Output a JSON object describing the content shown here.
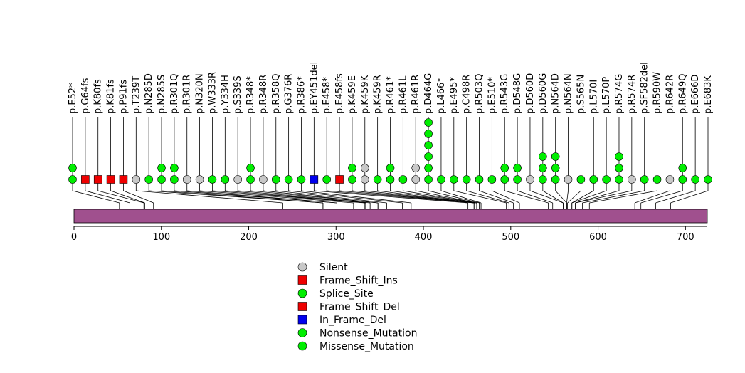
{
  "chart_data": {
    "type": "lollipop",
    "title": "",
    "protein": {
      "start": 0,
      "end": 725,
      "domain_color": "#A0508E"
    },
    "axis": {
      "min": 0,
      "max": 725,
      "ticks": [
        0,
        100,
        200,
        300,
        400,
        500,
        600,
        700
      ]
    },
    "mutation_types": {
      "Silent": {
        "shape": "circle",
        "color": "#C8C8C8"
      },
      "Frame_Shift_Ins": {
        "shape": "square",
        "color": "#EE0000"
      },
      "Splice_Site": {
        "shape": "circle",
        "color": "#00EE00"
      },
      "Frame_Shift_Del": {
        "shape": "square",
        "color": "#EE0000"
      },
      "In_Frame_Del": {
        "shape": "square",
        "color": "#0000EE"
      },
      "Nonsense_Mutation": {
        "shape": "circle",
        "color": "#00EE00"
      },
      "Missense_Mutation": {
        "shape": "circle",
        "color": "#00EE00"
      }
    },
    "legend": [
      "Silent",
      "Frame_Shift_Ins",
      "Splice_Site",
      "Frame_Shift_Del",
      "In_Frame_Del",
      "Nonsense_Mutation",
      "Missense_Mutation"
    ],
    "mutations": [
      {
        "label": "p.E52*",
        "pos": 52,
        "markers": [
          "#00EE00",
          "#00EE00"
        ],
        "shape": "circle"
      },
      {
        "label": "p.G64fs",
        "pos": 64,
        "markers": [
          "#EE0000"
        ],
        "shape": "square"
      },
      {
        "label": "p.K80fs",
        "pos": 80,
        "markers": [
          "#EE0000"
        ],
        "shape": "square"
      },
      {
        "label": "p.K81fs",
        "pos": 81,
        "markers": [
          "#EE0000"
        ],
        "shape": "square"
      },
      {
        "label": "p.P91fs",
        "pos": 91,
        "markers": [
          "#EE0000"
        ],
        "shape": "square"
      },
      {
        "label": "p.T239T",
        "pos": 239,
        "markers": [
          "#C8C8C8"
        ],
        "shape": "circle"
      },
      {
        "label": "p.N285D",
        "pos": 285,
        "markers": [
          "#00EE00"
        ],
        "shape": "circle"
      },
      {
        "label": "p.N285S",
        "pos": 285,
        "markers": [
          "#00EE00",
          "#00EE00"
        ],
        "shape": "circle"
      },
      {
        "label": "p.R301Q",
        "pos": 301,
        "markers": [
          "#00EE00",
          "#00EE00"
        ],
        "shape": "circle"
      },
      {
        "label": "p.R301R",
        "pos": 301,
        "markers": [
          "#C8C8C8"
        ],
        "shape": "circle"
      },
      {
        "label": "p.N320N",
        "pos": 320,
        "markers": [
          "#C8C8C8"
        ],
        "shape": "circle"
      },
      {
        "label": "p.W333R",
        "pos": 333,
        "markers": [
          "#00EE00"
        ],
        "shape": "circle"
      },
      {
        "label": "p.Y334H",
        "pos": 334,
        "markers": [
          "#00EE00"
        ],
        "shape": "circle"
      },
      {
        "label": "p.S339S",
        "pos": 339,
        "markers": [
          "#C8C8C8"
        ],
        "shape": "circle"
      },
      {
        "label": "p.R348*",
        "pos": 348,
        "markers": [
          "#00EE00",
          "#00EE00"
        ],
        "shape": "circle"
      },
      {
        "label": "p.R348R",
        "pos": 348,
        "markers": [
          "#C8C8C8"
        ],
        "shape": "circle"
      },
      {
        "label": "p.R358Q",
        "pos": 358,
        "markers": [
          "#00EE00"
        ],
        "shape": "circle"
      },
      {
        "label": "p.G376R",
        "pos": 376,
        "markers": [
          "#00EE00"
        ],
        "shape": "circle"
      },
      {
        "label": "p.R386*",
        "pos": 386,
        "markers": [
          "#00EE00"
        ],
        "shape": "circle"
      },
      {
        "label": "p.EY451del",
        "pos": 451,
        "markers": [
          "#0000EE"
        ],
        "shape": "square"
      },
      {
        "label": "p.E458*",
        "pos": 458,
        "markers": [
          "#00EE00"
        ],
        "shape": "circle"
      },
      {
        "label": "p.E458fs",
        "pos": 458,
        "markers": [
          "#EE0000"
        ],
        "shape": "square"
      },
      {
        "label": "p.K459E",
        "pos": 459,
        "markers": [
          "#00EE00",
          "#00EE00"
        ],
        "shape": "circle"
      },
      {
        "label": "p.K459K",
        "pos": 459,
        "markers": [
          "#C8C8C8",
          "#C8C8C8"
        ],
        "shape": "circle"
      },
      {
        "label": "p.K459R",
        "pos": 459,
        "markers": [
          "#00EE00"
        ],
        "shape": "circle"
      },
      {
        "label": "p.R461*",
        "pos": 461,
        "markers": [
          "#00EE00",
          "#00EE00"
        ],
        "shape": "circle"
      },
      {
        "label": "p.R461L",
        "pos": 461,
        "markers": [
          "#00EE00"
        ],
        "shape": "circle"
      },
      {
        "label": "p.R461R",
        "pos": 461,
        "markers": [
          "#C8C8C8",
          "#C8C8C8"
        ],
        "shape": "circle"
      },
      {
        "label": "p.D464G",
        "pos": 464,
        "markers": [
          "#00EE00",
          "#00EE00",
          "#00EE00",
          "#00EE00",
          "#00EE00",
          "#00EE00"
        ],
        "shape": "circle"
      },
      {
        "label": "p.L466*",
        "pos": 466,
        "markers": [
          "#00EE00"
        ],
        "shape": "circle"
      },
      {
        "label": "p.E495*",
        "pos": 495,
        "markers": [
          "#00EE00"
        ],
        "shape": "circle"
      },
      {
        "label": "p.C498R",
        "pos": 498,
        "markers": [
          "#00EE00"
        ],
        "shape": "circle"
      },
      {
        "label": "p.R503Q",
        "pos": 503,
        "markers": [
          "#00EE00"
        ],
        "shape": "circle"
      },
      {
        "label": "p.E510*",
        "pos": 510,
        "markers": [
          "#00EE00"
        ],
        "shape": "circle"
      },
      {
        "label": "p.R543G",
        "pos": 543,
        "markers": [
          "#00EE00",
          "#00EE00"
        ],
        "shape": "circle"
      },
      {
        "label": "p.D548G",
        "pos": 548,
        "markers": [
          "#00EE00",
          "#00EE00"
        ],
        "shape": "circle"
      },
      {
        "label": "p.D560D",
        "pos": 560,
        "markers": [
          "#C8C8C8"
        ],
        "shape": "circle"
      },
      {
        "label": "p.D560G",
        "pos": 560,
        "markers": [
          "#00EE00",
          "#00EE00",
          "#00EE00"
        ],
        "shape": "circle"
      },
      {
        "label": "p.N564D",
        "pos": 564,
        "markers": [
          "#00EE00",
          "#00EE00",
          "#00EE00"
        ],
        "shape": "circle"
      },
      {
        "label": "p.N564N",
        "pos": 564,
        "markers": [
          "#C8C8C8"
        ],
        "shape": "circle"
      },
      {
        "label": "p.S565N",
        "pos": 565,
        "markers": [
          "#00EE00"
        ],
        "shape": "circle"
      },
      {
        "label": "p.L570I",
        "pos": 570,
        "markers": [
          "#00EE00"
        ],
        "shape": "circle"
      },
      {
        "label": "p.L570P",
        "pos": 570,
        "markers": [
          "#00EE00"
        ],
        "shape": "circle"
      },
      {
        "label": "p.R574G",
        "pos": 574,
        "markers": [
          "#00EE00",
          "#00EE00",
          "#00EE00"
        ],
        "shape": "circle"
      },
      {
        "label": "p.R574R",
        "pos": 574,
        "markers": [
          "#C8C8C8"
        ],
        "shape": "circle"
      },
      {
        "label": "p.SF582del",
        "pos": 582,
        "markers": [
          "#00EE00"
        ],
        "shape": "circle"
      },
      {
        "label": "p.R590W",
        "pos": 590,
        "markers": [
          "#00EE00"
        ],
        "shape": "circle"
      },
      {
        "label": "p.R642R",
        "pos": 642,
        "markers": [
          "#C8C8C8"
        ],
        "shape": "circle"
      },
      {
        "label": "p.R649Q",
        "pos": 649,
        "markers": [
          "#00EE00",
          "#00EE00"
        ],
        "shape": "circle"
      },
      {
        "label": "p.E666D",
        "pos": 666,
        "markers": [
          "#00EE00"
        ],
        "shape": "circle"
      },
      {
        "label": "p.E683K",
        "pos": 683,
        "markers": [
          "#00EE00"
        ],
        "shape": "circle"
      }
    ]
  }
}
